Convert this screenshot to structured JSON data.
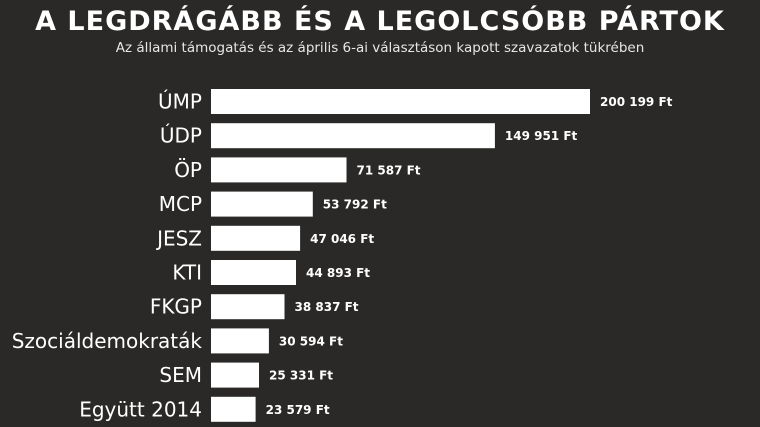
{
  "chart_data": {
    "type": "bar",
    "orientation": "horizontal",
    "title": "A LEGDRÁGÁBB ÉS A LEGOLCSÓBB PÁRTOK",
    "subtitle": "Az állami támogatás és az április 6-ai választáson kapott szavazatok tükrében",
    "categories": [
      "ÚMP",
      "ÚDP",
      "ÖP",
      "MCP",
      "JESZ",
      "KTI",
      "FKGP",
      "Szociáldemokraták",
      "SEM",
      "Együtt 2014"
    ],
    "values": [
      200199,
      149951,
      71587,
      53792,
      47046,
      44893,
      38837,
      30594,
      25331,
      23579
    ],
    "value_labels": [
      "200 199 Ft",
      "149 951 Ft",
      "71 587 Ft",
      "53 792 Ft",
      "47 046 Ft",
      "44 893 Ft",
      "38 837 Ft",
      "30 594 Ft",
      "25 331 Ft",
      "23 579 Ft"
    ],
    "xlim": [
      0,
      200199
    ],
    "grid": false,
    "legend": "none",
    "colors": {
      "background": "#2a2928",
      "bar": "#ffffff",
      "text": "#ffffff",
      "subtitle": "#e6e6e6"
    }
  }
}
